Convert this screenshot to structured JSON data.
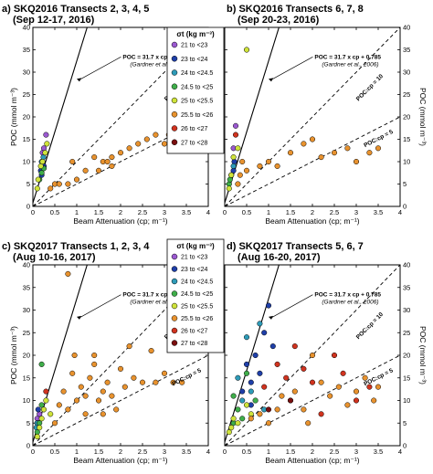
{
  "colors": {
    "21 to <23": "#9b59d0",
    "23 to <24": "#1f3fa8",
    "24 to <24.5": "#2e9bb8",
    "24.5 to <25": "#3fae4a",
    "25 to <25.5": "#cfe33a",
    "25.5 to <26": "#e8922e",
    "26 to <27": "#d0331f",
    "27 to <28": "#7a1010"
  },
  "chart_data": [
    {
      "type": "scatter",
      "panel": "a",
      "title": "a) SKQ2016 Transects 2, 3, 4, 5",
      "subtitle": "(Sep 12-17, 2016)",
      "xlabel": "Beam Attenuation (cp; m⁻¹)",
      "ylabel": "POC (mmol m⁻³)",
      "xlim": [
        0,
        4
      ],
      "ylim": [
        0,
        40
      ],
      "xticks": [
        "0",
        "0.5",
        "1",
        "1.5",
        "2",
        "2.5",
        "3",
        "3.5",
        "4"
      ],
      "yticks": [
        "0",
        "5",
        "10",
        "15",
        "20",
        "25",
        "30",
        "35",
        "40"
      ],
      "equation_label": "POC = 31.7 x cp + 0.785",
      "citation_label": "(Gardner et al., 2006)",
      "ratio_labels": [
        "POC:cp = 10",
        "POC:cp = 5"
      ],
      "series": [
        {
          "class": "21 to <23",
          "points": [
            [
              0.22,
              12
            ],
            [
              0.25,
              13
            ],
            [
              0.3,
              16
            ]
          ]
        },
        {
          "class": "23 to <24",
          "points": [
            [
              0.2,
              7
            ],
            [
              0.25,
              9
            ],
            [
              0.18,
              8
            ]
          ]
        },
        {
          "class": "24 to <24.5",
          "points": [
            [
              0.2,
              10
            ],
            [
              0.24,
              11
            ]
          ]
        },
        {
          "class": "24.5 to <25",
          "points": [
            [
              0.15,
              6
            ],
            [
              0.2,
              7.5
            ],
            [
              0.25,
              8.5
            ]
          ]
        },
        {
          "class": "25 to <25.5",
          "points": [
            [
              0.1,
              4
            ],
            [
              0.12,
              6
            ],
            [
              0.18,
              9
            ],
            [
              0.22,
              10
            ],
            [
              0.28,
              12
            ],
            [
              0.32,
              14
            ]
          ]
        },
        {
          "class": "25.5 to <26",
          "points": [
            [
              0.4,
              4
            ],
            [
              0.5,
              5
            ],
            [
              0.6,
              5
            ],
            [
              0.8,
              5
            ],
            [
              1.0,
              6
            ],
            [
              1.2,
              8
            ],
            [
              1.4,
              11
            ],
            [
              1.5,
              8
            ],
            [
              1.6,
              10
            ],
            [
              1.7,
              10
            ],
            [
              1.8,
              11
            ],
            [
              2.0,
              12
            ],
            [
              2.2,
              13
            ],
            [
              2.4,
              14
            ],
            [
              2.6,
              15
            ],
            [
              2.8,
              16
            ],
            [
              3.0,
              14
            ],
            [
              3.1,
              16
            ],
            [
              1.8,
              9
            ],
            [
              0.9,
              10
            ]
          ]
        }
      ]
    },
    {
      "type": "scatter",
      "panel": "b",
      "title": "b) SKQ2016 Transects 6, 7, 8",
      "subtitle": "(Sep 20-23, 2016)",
      "xlabel": "Beam Attenuation (cp; m⁻¹)",
      "ylabel": "POC (mmol m⁻³)",
      "xlim": [
        0,
        4
      ],
      "ylim": [
        0,
        40
      ],
      "xticks": [
        "0",
        "0.5",
        "1",
        "1.5",
        "2",
        "2.5",
        "3",
        "3.5",
        "4"
      ],
      "yticks": [
        "0",
        "5",
        "10",
        "15",
        "20",
        "25",
        "30",
        "35",
        "40"
      ],
      "equation_label": "POC = 31.7 x cp + 0.785",
      "citation_label": "(Gardner et al., 2006)",
      "ratio_labels": [
        "POC:cp = 10",
        "POC:cp = 5"
      ],
      "series": [
        {
          "class": "21 to <23",
          "points": [
            [
              0.2,
              13
            ],
            [
              0.25,
              18
            ]
          ]
        },
        {
          "class": "23 to <24",
          "points": [
            [
              0.2,
              8
            ],
            [
              0.22,
              10
            ]
          ]
        },
        {
          "class": "24 to <24.5",
          "points": [
            [
              0.15,
              7
            ],
            [
              0.2,
              9
            ]
          ]
        },
        {
          "class": "24.5 to <25",
          "points": [
            [
              0.1,
              5
            ],
            [
              0.12,
              6
            ]
          ]
        },
        {
          "class": "25 to <25.5",
          "points": [
            [
              0.1,
              4
            ],
            [
              0.15,
              7
            ],
            [
              0.2,
              11
            ],
            [
              0.3,
              13
            ],
            [
              0.5,
              35
            ]
          ]
        },
        {
          "class": "25.5 to <26",
          "points": [
            [
              0.3,
              5
            ],
            [
              0.35,
              7
            ],
            [
              0.5,
              8
            ],
            [
              0.8,
              9
            ],
            [
              1.0,
              10
            ],
            [
              1.2,
              9
            ],
            [
              1.5,
              12
            ],
            [
              1.8,
              14
            ],
            [
              2.0,
              15
            ],
            [
              2.2,
              11
            ],
            [
              2.5,
              12
            ],
            [
              2.8,
              13
            ],
            [
              3.0,
              10
            ],
            [
              3.3,
              12
            ],
            [
              3.5,
              13
            ],
            [
              0.4,
              10
            ]
          ]
        },
        {
          "class": "26 to <27",
          "points": [
            [
              0.25,
              16
            ]
          ]
        }
      ]
    },
    {
      "type": "scatter",
      "panel": "c",
      "title": "c) SKQ2017 Transects 1, 2, 3, 4",
      "subtitle": "(Aug 10-16, 2017)",
      "xlabel": "Beam Attenuation (cp; m⁻¹)",
      "ylabel": "POC (mmol m⁻³)",
      "xlim": [
        0,
        4
      ],
      "ylim": [
        0,
        40
      ],
      "xticks": [
        "0",
        "0.5",
        "1",
        "1.5",
        "2",
        "2.5",
        "3",
        "3.5",
        "4"
      ],
      "yticks": [
        "0",
        "5",
        "10",
        "15",
        "20",
        "25",
        "30",
        "35",
        "40"
      ],
      "equation_label": "POC = 31.7 x cp + 0.785",
      "citation_label": "(Gardner et al., 2006)",
      "ratio_labels": [
        "POC:cp = 10",
        "POC:cp = 5"
      ],
      "series": [
        {
          "class": "21 to <23",
          "points": [
            [
              0.1,
              6
            ],
            [
              0.15,
              7
            ]
          ]
        },
        {
          "class": "23 to <24",
          "points": [
            [
              0.1,
              5
            ],
            [
              0.12,
              8
            ]
          ]
        },
        {
          "class": "24 to <24.5",
          "points": [
            [
              0.08,
              4
            ],
            [
              0.1,
              5
            ]
          ]
        },
        {
          "class": "24.5 to <25",
          "points": [
            [
              0.1,
              3
            ],
            [
              0.15,
              5
            ],
            [
              0.2,
              18
            ],
            [
              0.2,
              9
            ]
          ]
        },
        {
          "class": "25 to <25.5",
          "points": [
            [
              0.1,
              2
            ],
            [
              0.15,
              4
            ],
            [
              0.2,
              6
            ],
            [
              0.25,
              8
            ],
            [
              0.3,
              10
            ],
            [
              0.4,
              7
            ]
          ]
        },
        {
          "class": "25.5 to <26",
          "points": [
            [
              0.5,
              5
            ],
            [
              0.6,
              9
            ],
            [
              0.7,
              12
            ],
            [
              0.8,
              8
            ],
            [
              0.9,
              16
            ],
            [
              1.0,
              10
            ],
            [
              1.1,
              13
            ],
            [
              1.2,
              11
            ],
            [
              1.3,
              15
            ],
            [
              1.4,
              18
            ],
            [
              1.5,
              10
            ],
            [
              1.6,
              12
            ],
            [
              1.7,
              14
            ],
            [
              1.8,
              11
            ],
            [
              2.0,
              17
            ],
            [
              2.1,
              13
            ],
            [
              2.2,
              22
            ],
            [
              2.3,
              15
            ],
            [
              2.5,
              14
            ],
            [
              2.7,
              21
            ],
            [
              2.8,
              14
            ],
            [
              3.0,
              16
            ],
            [
              3.2,
              14
            ],
            [
              3.4,
              14
            ],
            [
              0.8,
              38
            ],
            [
              0.95,
              20
            ],
            [
              1.2,
              7
            ],
            [
              1.4,
              20
            ],
            [
              1.6,
              7
            ],
            [
              1.9,
              8
            ]
          ]
        },
        {
          "class": "26 to <27",
          "points": [
            [
              0.3,
              12
            ]
          ]
        }
      ]
    },
    {
      "type": "scatter",
      "panel": "d",
      "title": "d) SKQ2017 Transects 5, 6, 7",
      "subtitle": "(Aug 16-20, 2017)",
      "xlabel": "Beam Attenuation (cp; m⁻¹)",
      "ylabel": "POC (mmol m⁻³)",
      "xlim": [
        0,
        4
      ],
      "ylim": [
        0,
        40
      ],
      "xticks": [
        "0",
        "0.5",
        "1",
        "1.5",
        "2",
        "2.5",
        "3",
        "3.5",
        "4"
      ],
      "yticks": [
        "0",
        "5",
        "10",
        "15",
        "20",
        "25",
        "30",
        "35",
        "40"
      ],
      "equation_label": "POC = 31.7 x cp + 0.785",
      "citation_label": "(Gardner et al., 2006)",
      "ratio_labels": [
        "POC:cp = 10",
        "POC:cp = 5"
      ],
      "series": [
        {
          "class": "23 to <24",
          "points": [
            [
              0.5,
              18
            ],
            [
              0.6,
              14
            ],
            [
              0.7,
              20
            ],
            [
              0.8,
              16
            ],
            [
              0.9,
              25
            ],
            [
              1.0,
              31
            ],
            [
              0.4,
              12
            ],
            [
              0.6,
              9
            ],
            [
              1.1,
              22
            ]
          ]
        },
        {
          "class": "24 to <24.5",
          "points": [
            [
              0.3,
              15
            ],
            [
              0.4,
              10
            ],
            [
              0.5,
              24
            ],
            [
              0.6,
              12
            ],
            [
              0.8,
              27
            ],
            [
              0.9,
              8
            ]
          ]
        },
        {
          "class": "24.5 to <25",
          "points": [
            [
              0.2,
              5
            ],
            [
              0.3,
              8
            ],
            [
              0.4,
              6
            ],
            [
              0.5,
              16
            ],
            [
              0.7,
              10
            ],
            [
              0.2,
              11
            ]
          ]
        },
        {
          "class": "25 to <25.5",
          "points": [
            [
              0.1,
              3
            ],
            [
              0.15,
              4
            ],
            [
              0.2,
              6
            ],
            [
              0.3,
              5
            ],
            [
              0.5,
              9
            ],
            [
              0.6,
              7
            ]
          ]
        },
        {
          "class": "25.5 to <26",
          "points": [
            [
              0.6,
              6
            ],
            [
              0.8,
              7
            ],
            [
              1.0,
              5
            ],
            [
              1.2,
              8
            ],
            [
              1.5,
              10
            ],
            [
              1.6,
              12
            ],
            [
              1.8,
              8
            ],
            [
              2.0,
              20
            ],
            [
              2.2,
              14
            ],
            [
              2.4,
              11
            ],
            [
              2.6,
              13
            ],
            [
              2.8,
              9
            ],
            [
              3.0,
              12
            ],
            [
              3.2,
              15
            ],
            [
              3.4,
              10
            ],
            [
              3.5,
              13
            ],
            [
              1.3,
              11
            ],
            [
              1.9,
              5
            ]
          ]
        },
        {
          "class": "26 to <27",
          "points": [
            [
              1.2,
              18
            ],
            [
              1.4,
              15
            ],
            [
              1.8,
              17
            ],
            [
              2.0,
              14
            ],
            [
              2.5,
              20
            ],
            [
              2.7,
              16
            ],
            [
              3.0,
              10
            ],
            [
              1.6,
              22
            ],
            [
              0.9,
              13
            ],
            [
              2.2,
              7
            ],
            [
              3.3,
              13
            ]
          ]
        },
        {
          "class": "27 to <28",
          "points": [
            [
              1.5,
              10
            ],
            [
              1.0,
              8
            ]
          ]
        }
      ]
    }
  ],
  "legend": {
    "title": "σt (kg m⁻³)",
    "entries": [
      "21 to <23",
      "23 to <24",
      "24 to <24.5",
      "24.5 to <25",
      "25 to <25.5",
      "25.5 to <26",
      "26 to <27",
      "27 to <28"
    ]
  }
}
